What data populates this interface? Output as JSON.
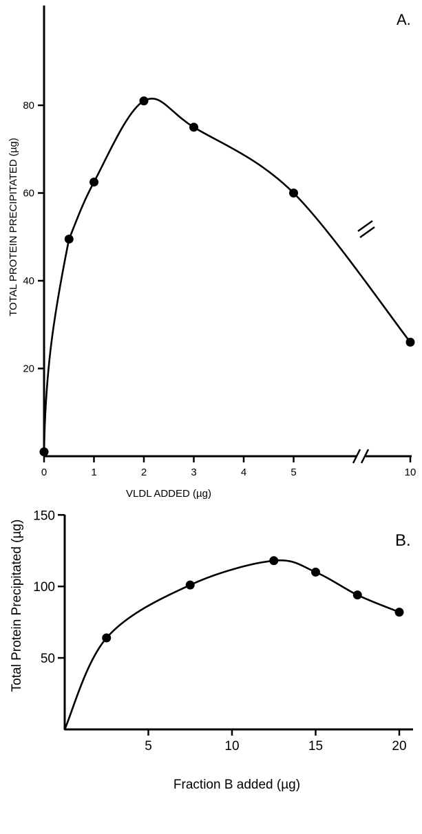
{
  "chart_data": [
    {
      "panel": "A.",
      "type": "line",
      "xlabel": "VLDL ADDED (µg)",
      "ylabel": "TOTAL PROTEIN PRECIPITATED (µg)",
      "x_ticks": [
        "0",
        "1",
        "2",
        "3",
        "4",
        "5",
        "10"
      ],
      "y_ticks": [
        "20",
        "40",
        "60",
        "80"
      ],
      "xlim": [
        0,
        10
      ],
      "ylim": [
        0,
        82
      ],
      "axis_break": "between 5 and 10",
      "points": [
        {
          "x": 0,
          "y": 1
        },
        {
          "x": 0.5,
          "y": 49.5
        },
        {
          "x": 1,
          "y": 62.5
        },
        {
          "x": 2,
          "y": 81
        },
        {
          "x": 3,
          "y": 75
        },
        {
          "x": 5,
          "y": 60
        },
        {
          "x": 10,
          "y": 26
        }
      ]
    },
    {
      "panel": "B.",
      "type": "line",
      "xlabel": "Fraction B added (µg)",
      "ylabel": "Total Protein Precipitated (µg)",
      "x_ticks": [
        "5",
        "10",
        "15",
        "20"
      ],
      "y_ticks": [
        "50",
        "100",
        "150"
      ],
      "xlim": [
        0,
        21
      ],
      "ylim": [
        0,
        150
      ],
      "points": [
        {
          "x": 0,
          "y": 0
        },
        {
          "x": 2.5,
          "y": 64
        },
        {
          "x": 7.5,
          "y": 101
        },
        {
          "x": 12.5,
          "y": 118
        },
        {
          "x": 15,
          "y": 110
        },
        {
          "x": 17.5,
          "y": 94
        },
        {
          "x": 20,
          "y": 82
        }
      ]
    }
  ]
}
